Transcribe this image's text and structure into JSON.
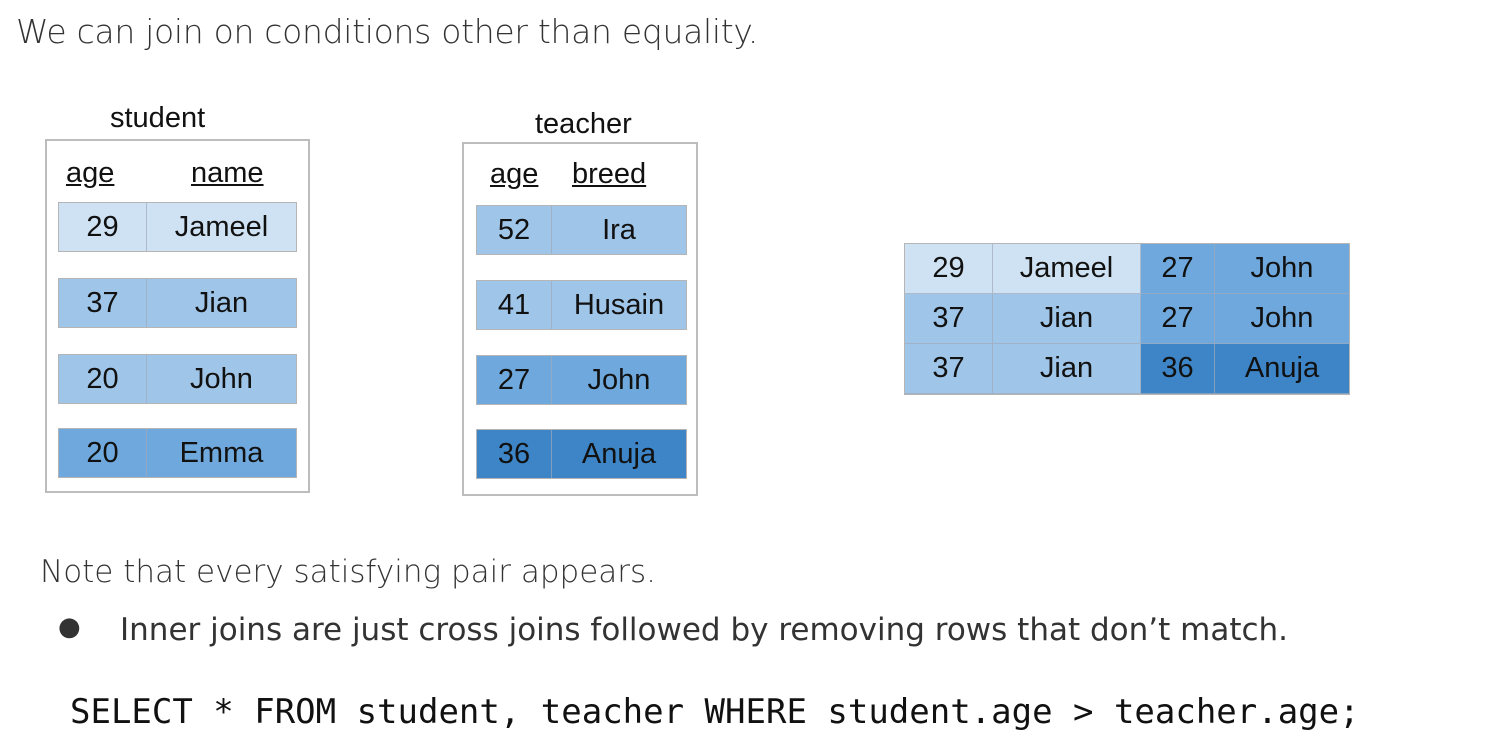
{
  "heading": "We can join on conditions other than equality.",
  "student": {
    "caption": "student",
    "columns": [
      "age",
      "name"
    ],
    "rows": [
      {
        "age": "29",
        "name": "Jameel"
      },
      {
        "age": "37",
        "name": "Jian"
      },
      {
        "age": "20",
        "name": "John"
      },
      {
        "age": "20",
        "name": "Emma"
      }
    ]
  },
  "teacher": {
    "caption": "teacher",
    "columns": [
      "age",
      "breed"
    ],
    "rows": [
      {
        "age": "52",
        "breed": "Ira"
      },
      {
        "age": "41",
        "breed": "Husain"
      },
      {
        "age": "27",
        "breed": "John"
      },
      {
        "age": "36",
        "breed": "Anuja"
      }
    ]
  },
  "result": {
    "rows": [
      [
        "29",
        "Jameel",
        "27",
        "John"
      ],
      [
        "37",
        "Jian",
        "27",
        "John"
      ],
      [
        "37",
        "Jian",
        "36",
        "Anuja"
      ]
    ]
  },
  "note": "Note that every satisfying pair appears.",
  "bullet": {
    "marker": "●",
    "text": "Inner joins are just cross joins followed by removing rows that don’t match."
  },
  "sql": "SELECT * FROM student, teacher WHERE student.age > teacher.age;",
  "colors": {
    "lightest": "#cfe2f3",
    "light": "#9fc5e8",
    "medium": "#6fa8dc",
    "dark": "#3d85c6"
  }
}
